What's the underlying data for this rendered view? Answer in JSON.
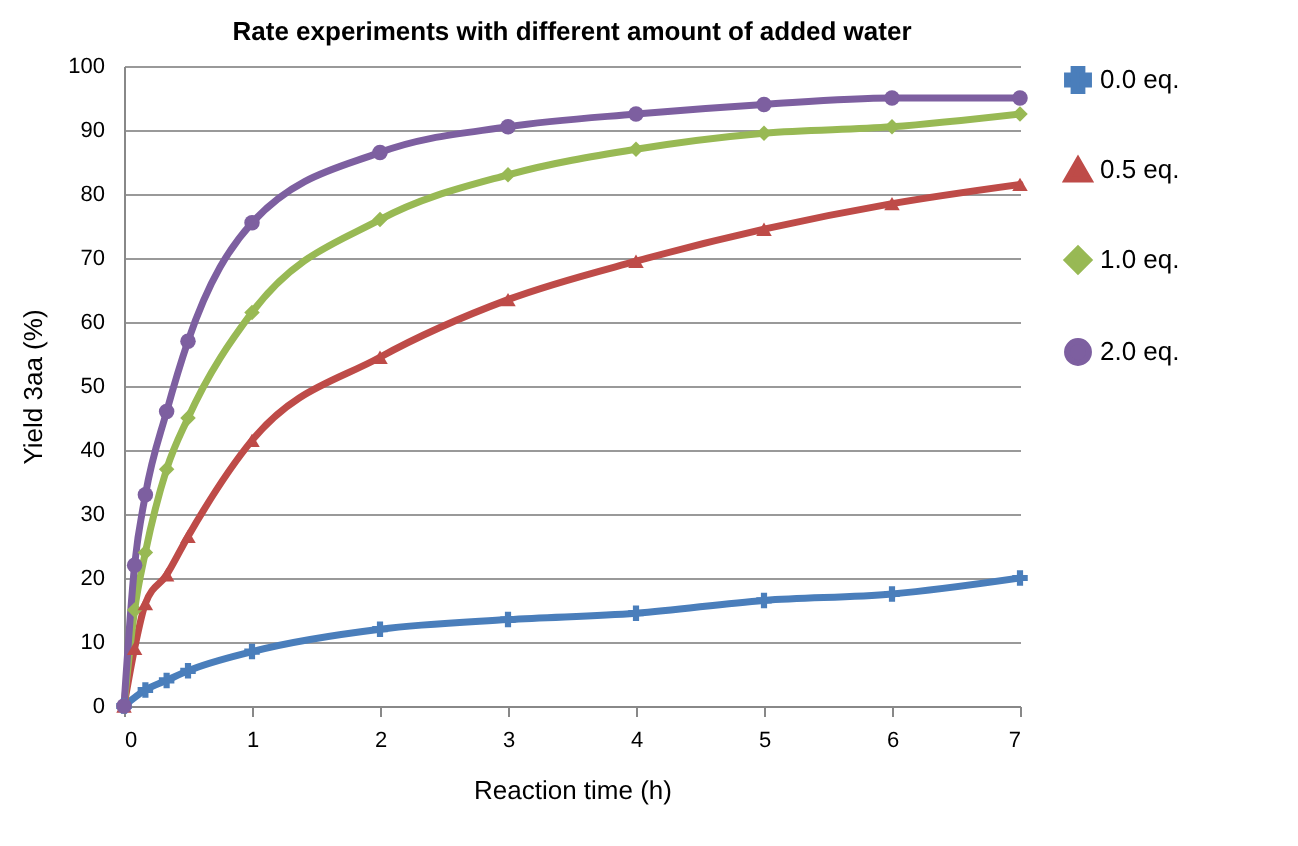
{
  "chart_data": {
    "type": "line",
    "title": "Rate experiments with different amount of added water",
    "xlabel": "Reaction time (h)",
    "ylabel": "Yield 3aa (%)",
    "xlim": [
      0,
      7
    ],
    "xticks": [
      0,
      1,
      2,
      3,
      4,
      5,
      6,
      7
    ],
    "ylim": [
      0,
      100
    ],
    "yticks": [
      0,
      10,
      20,
      30,
      40,
      50,
      60,
      70,
      80,
      90,
      100
    ],
    "grid": "y",
    "legend": "right",
    "series": [
      {
        "name": "0.0 eq.",
        "color": "#4a7ebb",
        "marker": "cross",
        "x": [
          0,
          0.167,
          0.333,
          0.5,
          1,
          2,
          3,
          4,
          5,
          6,
          7
        ],
        "values": [
          0,
          2.5,
          4,
          5.5,
          8.5,
          12,
          13.5,
          14.5,
          16.5,
          17.5,
          20
        ]
      },
      {
        "name": "0.5 eq.",
        "color": "#be4b48",
        "marker": "triangle",
        "x": [
          0,
          0.083,
          0.167,
          0.333,
          0.5,
          1,
          2,
          3,
          4,
          5,
          6,
          7
        ],
        "values": [
          0,
          9,
          16,
          20.5,
          26.5,
          41.5,
          54.5,
          63.5,
          69.5,
          74.5,
          78.5,
          81.5
        ]
      },
      {
        "name": "1.0 eq.",
        "color": "#98b954",
        "marker": "diamond",
        "x": [
          0,
          0.083,
          0.167,
          0.333,
          0.5,
          1,
          2,
          3,
          4,
          5,
          6,
          7
        ],
        "values": [
          0,
          15,
          24,
          37,
          45,
          61.5,
          76,
          83,
          87,
          89.5,
          90.5,
          92.5
        ]
      },
      {
        "name": "2.0 eq.",
        "color": "#7d5fa0",
        "marker": "circle",
        "x": [
          0,
          0.083,
          0.167,
          0.333,
          0.5,
          1,
          2,
          3,
          4,
          5,
          6,
          7
        ],
        "values": [
          0,
          22,
          33,
          46,
          57,
          75.5,
          86.5,
          90.5,
          92.5,
          94,
          95,
          95
        ]
      }
    ]
  }
}
